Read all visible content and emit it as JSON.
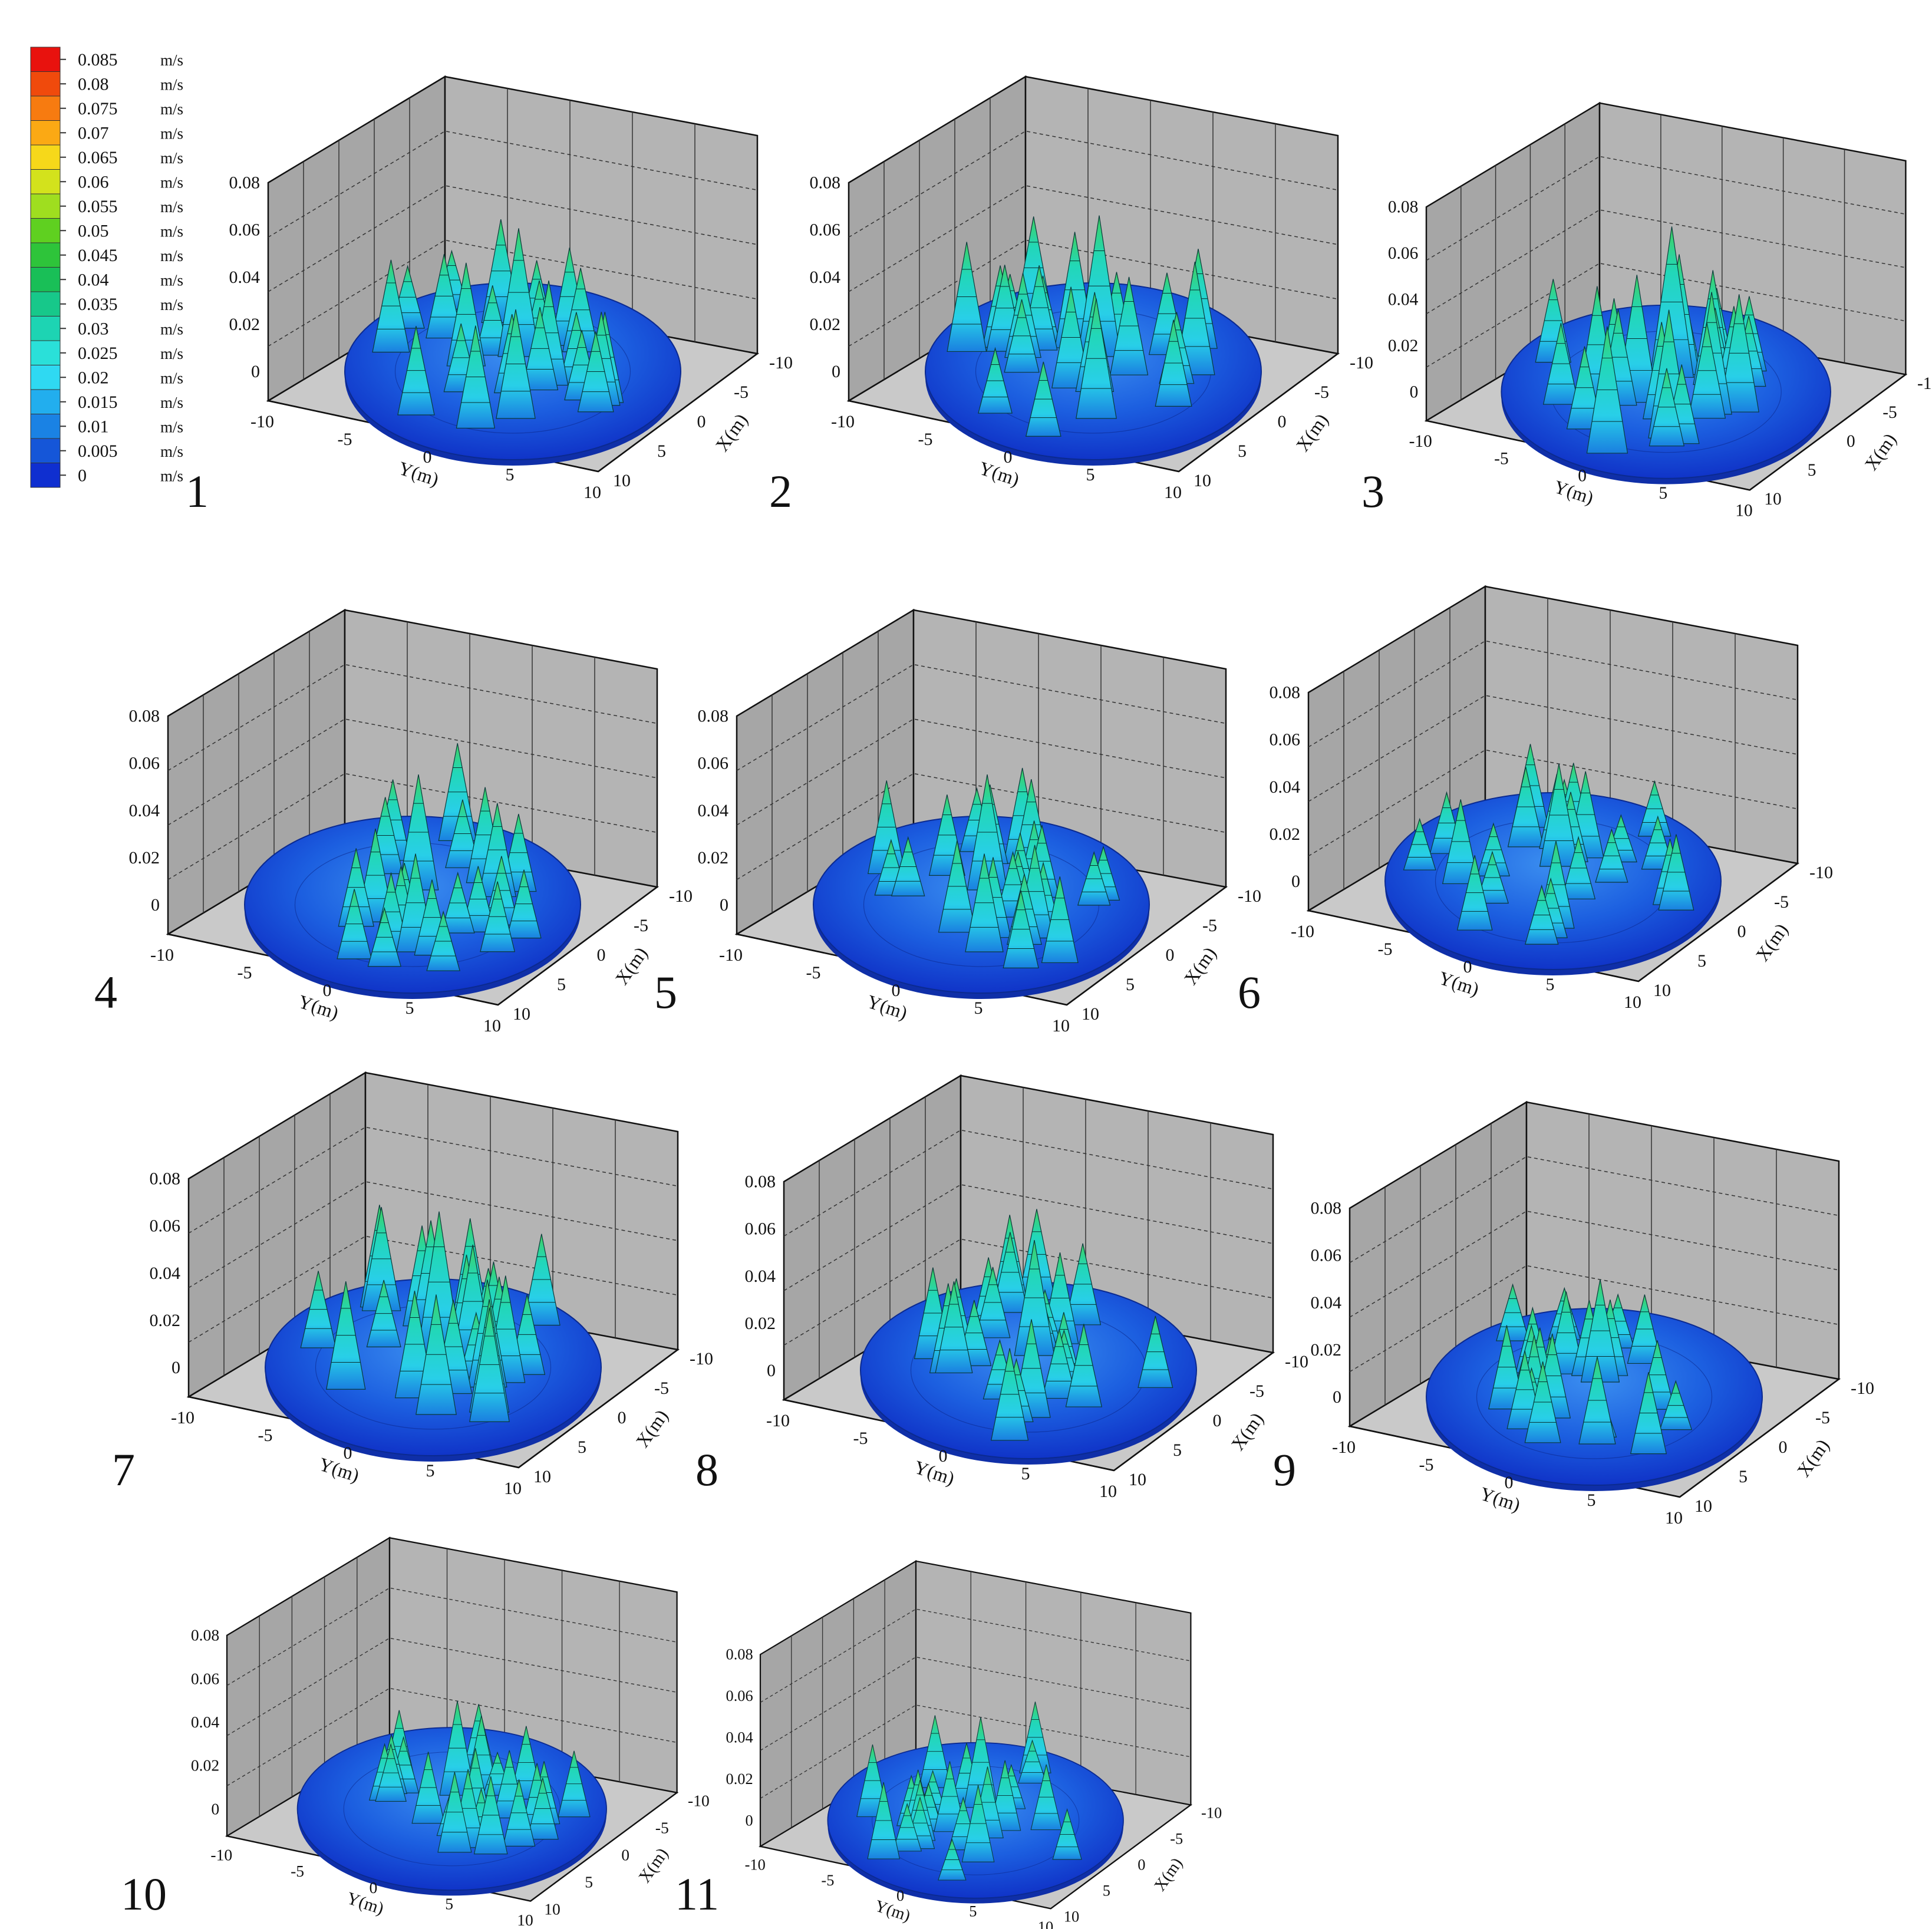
{
  "legend": {
    "unit": "m/s",
    "levels": [
      {
        "value": "0.085",
        "color": "#e8120e"
      },
      {
        "value": "0.08",
        "color": "#f04a0c"
      },
      {
        "value": "0.075",
        "color": "#f77b10"
      },
      {
        "value": "0.07",
        "color": "#fba914"
      },
      {
        "value": "0.065",
        "color": "#f6d81a"
      },
      {
        "value": "0.06",
        "color": "#d3e21c"
      },
      {
        "value": "0.055",
        "color": "#9fde1f"
      },
      {
        "value": "0.05",
        "color": "#5fd020"
      },
      {
        "value": "0.045",
        "color": "#2ec43a"
      },
      {
        "value": "0.04",
        "color": "#19bf57"
      },
      {
        "value": "0.035",
        "color": "#17c88a"
      },
      {
        "value": "0.03",
        "color": "#1dd4b3"
      },
      {
        "value": "0.025",
        "color": "#2ae0d9"
      },
      {
        "value": "0.02",
        "color": "#2fd9f2"
      },
      {
        "value": "0.015",
        "color": "#22aeee"
      },
      {
        "value": "0.01",
        "color": "#1a82e4"
      },
      {
        "value": "0.005",
        "color": "#1556d8"
      },
      {
        "value": "0",
        "color": "#0f2fd0"
      }
    ]
  },
  "panel_axes": {
    "z_ticks": [
      "0",
      "0.02",
      "0.04",
      "0.06",
      "0.08"
    ],
    "y_ticks": [
      "-10",
      "-5",
      "0",
      "5",
      "10"
    ],
    "x_ticks": [
      "-10",
      "-5",
      "0",
      "5",
      "10"
    ],
    "y_label": "Y(m)",
    "x_label": "X(m)"
  },
  "chart_data": [
    {
      "type": "surface",
      "panel_label": "1",
      "xlabel": "X(m)",
      "ylabel": "Y(m)",
      "zlim": [
        0,
        0.085
      ],
      "z_ticks": [
        0,
        0.02,
        0.04,
        0.06,
        0.08
      ],
      "peak_value": 0.05
    },
    {
      "type": "surface",
      "panel_label": "2",
      "xlabel": "X(m)",
      "ylabel": "Y(m)",
      "zlim": [
        0,
        0.085
      ],
      "z_ticks": [
        0,
        0.02,
        0.04,
        0.06,
        0.08
      ],
      "peak_value": 0.055
    },
    {
      "type": "surface",
      "panel_label": "3",
      "xlabel": "X(m)",
      "ylabel": "Y(m)",
      "zlim": [
        0,
        0.085
      ],
      "z_ticks": [
        0,
        0.02,
        0.04,
        0.06,
        0.08
      ],
      "peak_value": 0.06
    },
    {
      "type": "surface",
      "panel_label": "4",
      "xlabel": "X(m)",
      "ylabel": "Y(m)",
      "zlim": [
        0,
        0.085
      ],
      "z_ticks": [
        0,
        0.02,
        0.04,
        0.06,
        0.08
      ],
      "peak_value": 0.045
    },
    {
      "type": "surface",
      "panel_label": "5",
      "xlabel": "X(m)",
      "ylabel": "Y(m)",
      "zlim": [
        0,
        0.085
      ],
      "z_ticks": [
        0,
        0.02,
        0.04,
        0.06,
        0.08
      ],
      "peak_value": 0.045
    },
    {
      "type": "surface",
      "panel_label": "6",
      "xlabel": "X(m)",
      "ylabel": "Y(m)",
      "zlim": [
        0,
        0.085
      ],
      "z_ticks": [
        0,
        0.02,
        0.04,
        0.06,
        0.08
      ],
      "peak_value": 0.04
    },
    {
      "type": "surface",
      "panel_label": "7",
      "xlabel": "X(m)",
      "ylabel": "Y(m)",
      "zlim": [
        0,
        0.085
      ],
      "z_ticks": [
        0,
        0.02,
        0.04,
        0.06,
        0.08
      ],
      "peak_value": 0.055
    },
    {
      "type": "surface",
      "panel_label": "8",
      "xlabel": "X(m)",
      "ylabel": "Y(m)",
      "zlim": [
        0,
        0.085
      ],
      "z_ticks": [
        0,
        0.02,
        0.04,
        0.06,
        0.08
      ],
      "peak_value": 0.045
    },
    {
      "type": "surface",
      "panel_label": "9",
      "xlabel": "X(m)",
      "ylabel": "Y(m)",
      "zlim": [
        0,
        0.085
      ],
      "z_ticks": [
        0,
        0.02,
        0.04,
        0.06,
        0.08
      ],
      "peak_value": 0.04
    },
    {
      "type": "surface",
      "panel_label": "10",
      "xlabel": "X(m)",
      "ylabel": "Y(m)",
      "zlim": [
        0,
        0.085
      ],
      "z_ticks": [
        0,
        0.02,
        0.04,
        0.06,
        0.08
      ],
      "peak_value": 0.04
    },
    {
      "type": "surface",
      "panel_label": "11",
      "xlabel": "X(m)",
      "ylabel": "Y(m)",
      "zlim": [
        0,
        0.085
      ],
      "z_ticks": [
        0,
        0.02,
        0.04,
        0.06,
        0.08
      ],
      "peak_value": 0.04
    }
  ]
}
